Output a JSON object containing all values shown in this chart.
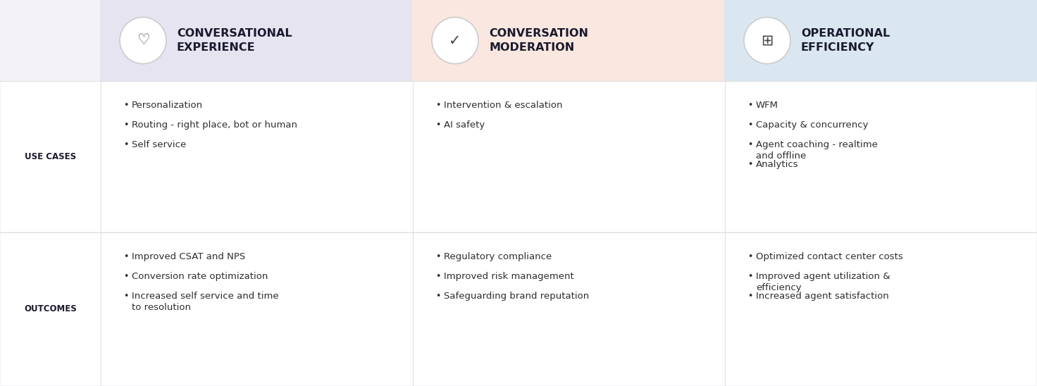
{
  "bg_color": "#f3f3f7",
  "header_colors": [
    "#e6e4f0",
    "#fae7e0",
    "#dae7f0"
  ],
  "header_titles": [
    "CONVERSATIONAL\nEXPERIENCE",
    "CONVERSATION\nMODERATION",
    "OPERATIONAL\nEFFICIENCY"
  ],
  "row_labels": [
    "USE CASES",
    "OUTCOMES"
  ],
  "row_label_color": "#1a1a2e",
  "cell_bg": "#ffffff",
  "use_cases": [
    [
      "Personalization",
      "Routing - right place, bot or human",
      "Self service"
    ],
    [
      "Intervention & escalation",
      "AI safety"
    ],
    [
      "WFM",
      "Capacity & concurrency",
      "Agent coaching - realtime\nand offline",
      "Analytics"
    ]
  ],
  "outcomes": [
    [
      "Improved CSAT and NPS",
      "Conversion rate optimization",
      "Increased self service and time\nto resolution"
    ],
    [
      "Regulatory compliance",
      "Improved risk management",
      "Safeguarding brand reputation"
    ],
    [
      "Optimized contact center costs",
      "Improved agent utilization &\nefficiency",
      "Increased agent satisfaction"
    ]
  ],
  "text_color": "#2d2d2d",
  "bullet_color": "#2d2d2d",
  "divider_color": "#e0e0e0",
  "label_fontsize": 8.5,
  "cell_fontsize": 9.5,
  "header_fontsize": 11.5
}
